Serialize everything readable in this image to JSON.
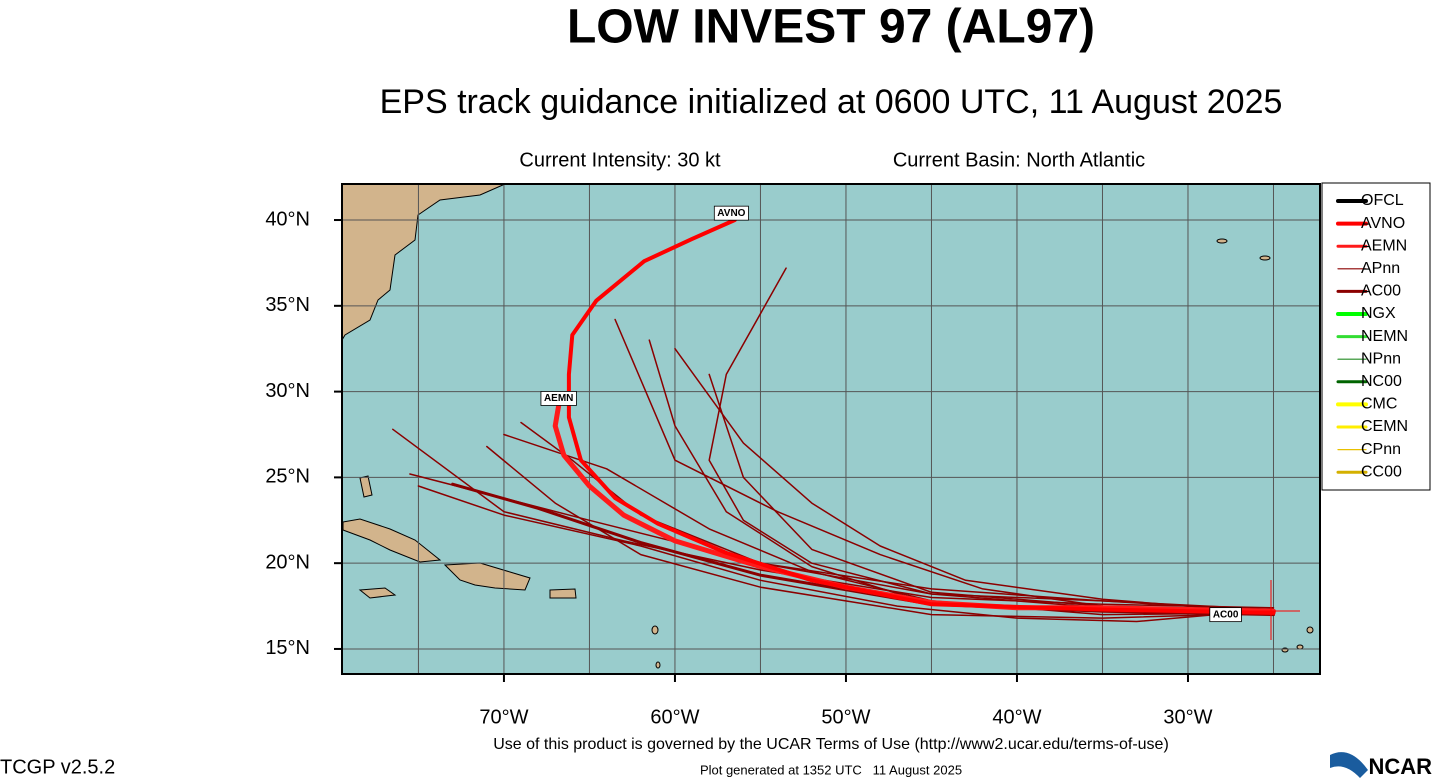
{
  "chart_data": {
    "type": "track-map",
    "title": "LOW INVEST 97 (AL97)",
    "subtitle": "EPS track guidance initialized at 0600 UTC, 11 August 2025",
    "intensity": "Current Intensity: 30 kt",
    "basin": "Current Basin: North Atlantic",
    "xlim": [
      -79.47,
      -22.28
    ],
    "ylim": [
      13.54,
      42.1
    ],
    "xticks": [
      {
        "value": -70,
        "label": "70°W"
      },
      {
        "value": -60,
        "label": "60°W"
      },
      {
        "value": -50,
        "label": "50°W"
      },
      {
        "value": -40,
        "label": "40°W"
      },
      {
        "value": -30,
        "label": "30°W"
      }
    ],
    "yticks": [
      {
        "value": 15,
        "label": "15°N"
      },
      {
        "value": 20,
        "label": "20°N"
      },
      {
        "value": 25,
        "label": "25°N"
      },
      {
        "value": 30,
        "label": "30°N"
      },
      {
        "value": 35,
        "label": "35°N"
      },
      {
        "value": 40,
        "label": "40°N"
      }
    ],
    "x_gridlines": [
      -75,
      -65,
      -55,
      -45,
      -35,
      -25
    ],
    "grid": true,
    "legend": [
      {
        "name": "OFCL",
        "color": "#000000",
        "width": 4
      },
      {
        "name": "AVNO",
        "color": "#ff0000",
        "width": 4
      },
      {
        "name": "AEMN",
        "color": "#ff1a1a",
        "width": 3
      },
      {
        "name": "APnn",
        "color": "#8b0000",
        "width": 1.2
      },
      {
        "name": "AC00",
        "color": "#8b0000",
        "width": 3
      },
      {
        "name": "NGX",
        "color": "#00ff00",
        "width": 4
      },
      {
        "name": "NEMN",
        "color": "#33dd33",
        "width": 3
      },
      {
        "name": "NPnn",
        "color": "#228b22",
        "width": 1.2
      },
      {
        "name": "NC00",
        "color": "#006400",
        "width": 3
      },
      {
        "name": "CMC",
        "color": "#ffff00",
        "width": 4
      },
      {
        "name": "CEMN",
        "color": "#ffee00",
        "width": 3
      },
      {
        "name": "CPnn",
        "color": "#e8c000",
        "width": 1.2
      },
      {
        "name": "CC00",
        "color": "#d4b000",
        "width": 3
      }
    ],
    "tracks": [
      {
        "color": "#8b0000",
        "width": 1.5,
        "lon": [
          -25,
          -35,
          -45,
          -55,
          -65,
          -75.5
        ],
        "lat": [
          17.3,
          17.8,
          18.2,
          20,
          22.5,
          25.2
        ]
      },
      {
        "color": "#8b0000",
        "width": 1.5,
        "lon": [
          -25,
          -35,
          -45,
          -52,
          -58,
          -64,
          -70
        ],
        "lat": [
          17.1,
          17.0,
          17.8,
          19.5,
          22,
          25.5,
          27.5
        ]
      },
      {
        "color": "#8b0000",
        "width": 1.5,
        "lon": [
          -25,
          -35,
          -45,
          -52,
          -56,
          -58,
          -57,
          -53.5
        ],
        "lat": [
          17.2,
          17.4,
          18.2,
          20,
          22.5,
          26,
          31,
          37.2
        ]
      },
      {
        "color": "#8b0000",
        "width": 1.5,
        "lon": [
          -25,
          -35,
          -42,
          -48,
          -54,
          -60,
          -63.5
        ],
        "lat": [
          17.0,
          17.5,
          18.5,
          20.5,
          23,
          26,
          34.2
        ]
      },
      {
        "color": "#8b0000",
        "width": 1.5,
        "lon": [
          -25,
          -35,
          -45,
          -55,
          -63,
          -70,
          -76.5
        ],
        "lat": [
          17.4,
          17.6,
          18,
          19.6,
          21.3,
          23,
          27.8
        ]
      },
      {
        "color": "#8b0000",
        "width": 1.5,
        "lon": [
          -25,
          -35,
          -45,
          -55,
          -62,
          -67,
          -71
        ],
        "lat": [
          17.1,
          16.8,
          17,
          18.6,
          20.5,
          23.5,
          26.8
        ]
      },
      {
        "color": "#8b0000",
        "width": 1.5,
        "lon": [
          -25,
          -35,
          -45,
          -52,
          -57,
          -60,
          -61.5
        ],
        "lat": [
          17,
          17.2,
          17.6,
          19.8,
          23,
          28,
          33
        ]
      },
      {
        "color": "#8b0000",
        "width": 1.5,
        "lon": [
          -25,
          -35,
          -45,
          -52,
          -56,
          -58
        ],
        "lat": [
          17.2,
          17.5,
          18.3,
          20.8,
          25,
          31
        ]
      },
      {
        "color": "#8b0000",
        "width": 1.5,
        "lon": [
          -25,
          -33,
          -40,
          -47,
          -55,
          -62,
          -70,
          -75
        ],
        "lat": [
          17.3,
          16.6,
          16.8,
          17.5,
          19,
          21,
          22.8,
          24.5
        ]
      },
      {
        "color": "#8b0000",
        "width": 1.5,
        "lon": [
          -25,
          -35,
          -45,
          -55,
          -62,
          -66,
          -69
        ],
        "lat": [
          17.2,
          17.8,
          18.5,
          20,
          22.8,
          26,
          28.2
        ]
      },
      {
        "color": "#8b0000",
        "width": 1.5,
        "lon": [
          -25,
          -35,
          -43,
          -48,
          -52,
          -56,
          -60
        ],
        "lat": [
          17.1,
          17.9,
          19,
          21,
          23.5,
          27,
          32.5
        ]
      },
      {
        "name": "AC00",
        "color": "#8b0000",
        "width": 3,
        "lon": [
          -25,
          -35,
          -45,
          -55,
          -62,
          -68,
          -73
        ],
        "lat": [
          17.0,
          17.2,
          17.6,
          19.3,
          21.2,
          23.2,
          24.6
        ],
        "label_lon": -27.8,
        "label_lat": 17.0
      },
      {
        "name": "AEMN",
        "color": "#ff1a1a",
        "width": 5,
        "lon": [
          -25,
          -30,
          -35,
          -40,
          -45,
          -50,
          -55,
          -60,
          -63,
          -65,
          -66.5,
          -67,
          -66.8
        ],
        "lat": [
          17.2,
          17.3,
          17.4,
          17.4,
          17.7,
          18.6,
          19.8,
          21.3,
          22.8,
          24.5,
          26.3,
          28,
          29.2
        ],
        "label_lon": -66.8,
        "label_lat": 29.6
      },
      {
        "name": "AVNO",
        "color": "#ff0000",
        "width": 4,
        "lon": [
          -25,
          -35,
          -45,
          -52,
          -57,
          -61,
          -63.5,
          -65.5,
          -66.2,
          -66.2,
          -66,
          -64.6,
          -61.8,
          -59,
          -56.5
        ],
        "lat": [
          17.1,
          17.3,
          17.6,
          19,
          20.6,
          22.3,
          23.8,
          26,
          28.5,
          31,
          33.3,
          35.3,
          37.6,
          38.9,
          40
        ],
        "label_lon": -56.7,
        "label_lat": 40.4
      }
    ]
  },
  "footer": {
    "version": "TCGP v2.5.2",
    "terms": "Use of this product is governed by the UCAR Terms of Use (http://www2.ucar.edu/terms-of-use)",
    "generated": "Plot generated at 1352 UTC   11 August 2025",
    "logo": "NCAR"
  }
}
